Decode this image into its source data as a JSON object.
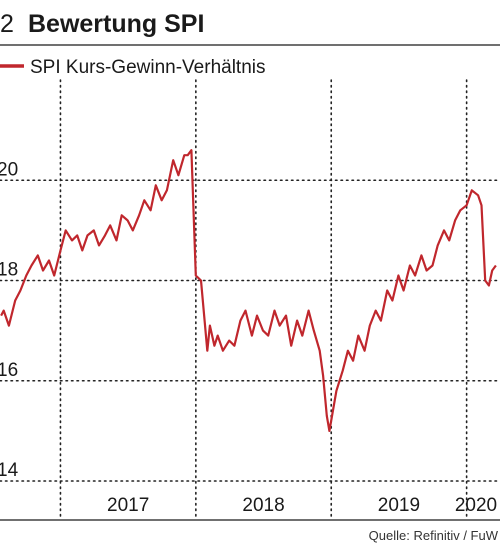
{
  "figure_number": "2",
  "title": "Bewertung SPI",
  "source": "Quelle: Refinitiv / FuW",
  "colors": {
    "series": "#c0272d",
    "text": "#1a1a1a",
    "grid": "#222222"
  },
  "chart_data": {
    "type": "line",
    "title": "Bewertung SPI",
    "xlabel": "",
    "ylabel": "",
    "x_tick_labels": [
      "2017",
      "2018",
      "2019",
      "2020"
    ],
    "x_tick_dates": [
      "2017-01-01",
      "2018-01-01",
      "2019-01-01",
      "2020-01-01"
    ],
    "xlim": [
      "2016-07-22",
      "2020-03-31"
    ],
    "y_tick_labels": [
      "20",
      "18",
      "16",
      "14"
    ],
    "y_ticks": [
      20,
      18,
      16,
      14
    ],
    "ylim": [
      14,
      22
    ],
    "grid": "dotted",
    "legend": "top-left",
    "series": [
      {
        "name": "SPI Kurs-Gewinn-Verhältnis",
        "x": [
          "2016-07-25",
          "2016-08-01",
          "2016-08-15",
          "2016-09-01",
          "2016-09-15",
          "2016-10-01",
          "2016-10-15",
          "2016-11-01",
          "2016-11-15",
          "2016-12-01",
          "2016-12-15",
          "2017-01-01",
          "2017-01-15",
          "2017-02-01",
          "2017-02-15",
          "2017-03-01",
          "2017-03-15",
          "2017-04-01",
          "2017-04-15",
          "2017-05-01",
          "2017-05-15",
          "2017-06-01",
          "2017-06-15",
          "2017-07-01",
          "2017-07-15",
          "2017-08-01",
          "2017-08-15",
          "2017-09-01",
          "2017-09-15",
          "2017-10-01",
          "2017-10-15",
          "2017-11-01",
          "2017-11-15",
          "2017-12-01",
          "2017-12-10",
          "2017-12-20",
          "2018-01-01",
          "2018-01-15",
          "2018-02-01",
          "2018-02-08",
          "2018-02-20",
          "2018-03-01",
          "2018-03-15",
          "2018-04-01",
          "2018-04-15",
          "2018-05-01",
          "2018-05-15",
          "2018-06-01",
          "2018-06-15",
          "2018-07-01",
          "2018-07-15",
          "2018-08-01",
          "2018-08-15",
          "2018-09-01",
          "2018-09-15",
          "2018-10-01",
          "2018-10-15",
          "2018-11-01",
          "2018-11-15",
          "2018-12-01",
          "2018-12-10",
          "2018-12-20",
          "2018-12-27",
          "2019-01-15",
          "2019-02-01",
          "2019-02-15",
          "2019-03-01",
          "2019-03-15",
          "2019-04-01",
          "2019-04-15",
          "2019-05-01",
          "2019-05-15",
          "2019-06-01",
          "2019-06-15",
          "2019-07-01",
          "2019-07-15",
          "2019-08-01",
          "2019-08-15",
          "2019-09-01",
          "2019-09-15",
          "2019-10-01",
          "2019-10-15",
          "2019-11-01",
          "2019-11-15",
          "2019-12-01",
          "2019-12-15",
          "2020-01-01",
          "2020-01-15",
          "2020-02-01",
          "2020-02-10",
          "2020-02-20",
          "2020-03-01",
          "2020-03-10",
          "2020-03-20"
        ],
        "y": [
          17.3,
          17.4,
          17.1,
          17.6,
          17.8,
          18.1,
          18.3,
          18.5,
          18.2,
          18.4,
          18.1,
          18.6,
          19.0,
          18.8,
          18.9,
          18.6,
          18.9,
          19.0,
          18.7,
          18.9,
          19.1,
          18.8,
          19.3,
          19.2,
          19.0,
          19.3,
          19.6,
          19.4,
          19.9,
          19.6,
          19.8,
          20.4,
          20.1,
          20.5,
          20.5,
          20.6,
          18.1,
          18.0,
          16.6,
          17.1,
          16.7,
          16.9,
          16.6,
          16.8,
          16.7,
          17.2,
          17.4,
          16.9,
          17.3,
          17.0,
          16.9,
          17.4,
          17.1,
          17.3,
          16.7,
          17.2,
          16.9,
          17.4,
          17.0,
          16.6,
          16.1,
          15.3,
          15.0,
          15.8,
          16.2,
          16.6,
          16.4,
          16.9,
          16.6,
          17.1,
          17.4,
          17.2,
          17.8,
          17.6,
          18.1,
          17.8,
          18.3,
          18.1,
          18.5,
          18.2,
          18.3,
          18.7,
          19.0,
          18.8,
          19.2,
          19.4,
          19.5,
          19.8,
          19.7,
          19.5,
          18.0,
          17.9,
          18.2,
          18.3
        ]
      }
    ]
  }
}
